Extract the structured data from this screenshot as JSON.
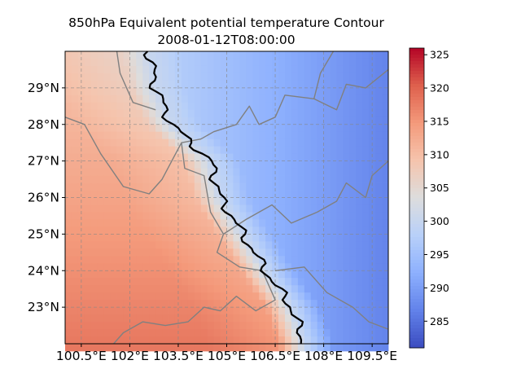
{
  "chart_data": {
    "type": "heatmap",
    "title": "850hPa Equivalent potential temperature Contour",
    "subtitle": "2008-01-12T08:00:00",
    "xlabel": "",
    "ylabel": "",
    "xlim": [
      100.0,
      110.0
    ],
    "ylim": [
      22.0,
      30.0
    ],
    "x_ticks": [
      "100.5°E",
      "102°E",
      "103.5°E",
      "105°E",
      "106.5°E",
      "108°E",
      "109.5°E"
    ],
    "y_ticks": [
      "23°N",
      "24°N",
      "25°N",
      "26°N",
      "27°N",
      "28°N",
      "29°N"
    ],
    "x_tick_values": [
      100.5,
      102,
      103.5,
      105,
      106.5,
      108,
      109.5
    ],
    "y_tick_values": [
      23,
      24,
      25,
      26,
      27,
      28,
      29
    ],
    "grid": true,
    "colormap": "coolwarm",
    "colorbar": {
      "range": [
        281,
        326
      ],
      "ticks": [
        "285",
        "290",
        "295",
        "300",
        "305",
        "310",
        "315",
        "320",
        "325"
      ],
      "tick_values": [
        285,
        290,
        295,
        300,
        305,
        310,
        315,
        320,
        325
      ],
      "placement": "right"
    },
    "contour_level": 300,
    "contour_color": "#000000",
    "boundary_color": "#808080",
    "field_summary": {
      "west_range": [
        305,
        318
      ],
      "east_range": [
        282,
        298
      ],
      "front_lon_by_lat": [
        [
          30.0,
          102.6
        ],
        [
          29.0,
          102.8
        ],
        [
          28.0,
          103.3
        ],
        [
          27.0,
          104.5
        ],
        [
          26.0,
          104.8
        ],
        [
          25.0,
          105.5
        ],
        [
          24.0,
          106.2
        ],
        [
          23.0,
          107.0
        ],
        [
          22.0,
          107.4
        ]
      ]
    }
  }
}
